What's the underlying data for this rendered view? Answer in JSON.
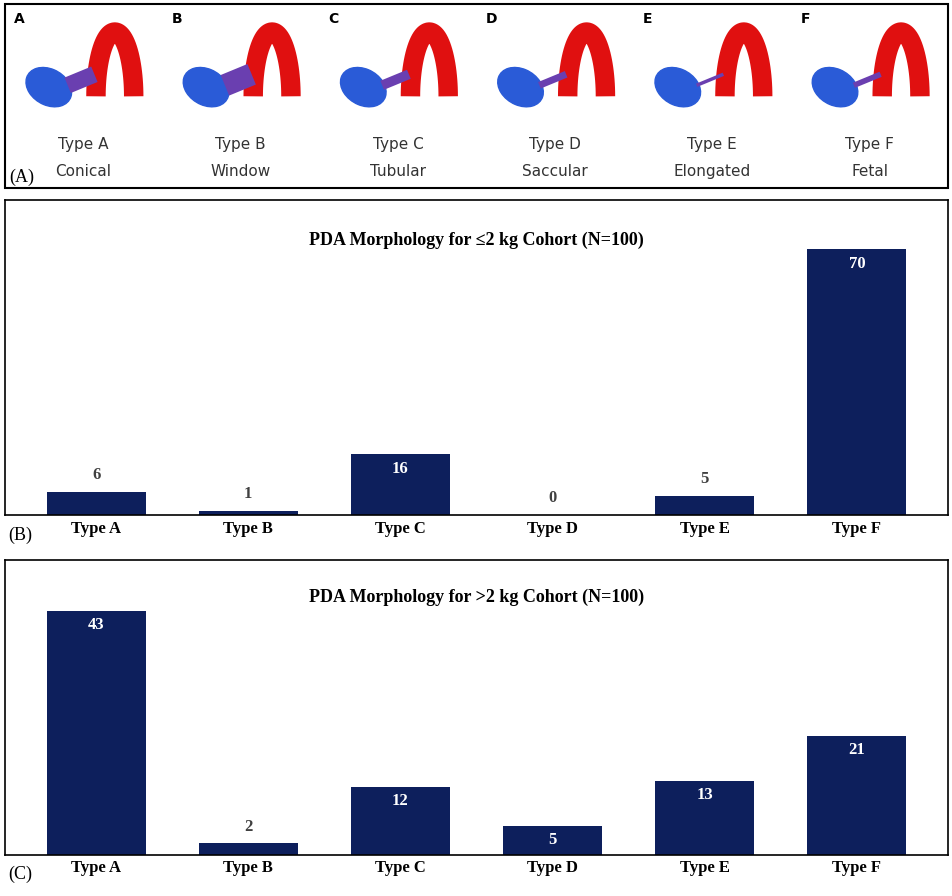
{
  "morphology_panel": {
    "panel_label": "(A)",
    "items": [
      {
        "letter": "A",
        "type": "Type A",
        "name": "Conical"
      },
      {
        "letter": "B",
        "type": "Type B",
        "name": "Window"
      },
      {
        "letter": "C",
        "type": "Type C",
        "name": "Tubular"
      },
      {
        "letter": "D",
        "type": "Type D",
        "name": "Saccular"
      },
      {
        "letter": "E",
        "type": "Type E",
        "name": "Elongated"
      },
      {
        "letter": "F",
        "type": "Type F",
        "name": "Fetal"
      }
    ]
  },
  "chart_data": [
    {
      "type": "bar",
      "panel_label": "(B)",
      "title": "PDA Morphology for ≤2 kg Cohort (N=100)",
      "categories": [
        "Type A",
        "Type B",
        "Type C",
        "Type D",
        "Type E",
        "Type F"
      ],
      "values": [
        6,
        1,
        16,
        0,
        5,
        70
      ],
      "color": "#0d1f5c",
      "ylim": [
        0,
        83
      ],
      "data_labels": true,
      "tick_labels": "x"
    },
    {
      "type": "bar",
      "panel_label": "(C)",
      "title": "PDA Morphology for >2 kg Cohort (N=100)",
      "categories": [
        "Type A",
        "Type B",
        "Type C",
        "Type D",
        "Type E",
        "Type F"
      ],
      "values": [
        43,
        2,
        12,
        5,
        13,
        21
      ],
      "color": "#0d1f5c",
      "ylim": [
        0,
        52
      ],
      "data_labels": true,
      "tick_labels": "x"
    }
  ]
}
